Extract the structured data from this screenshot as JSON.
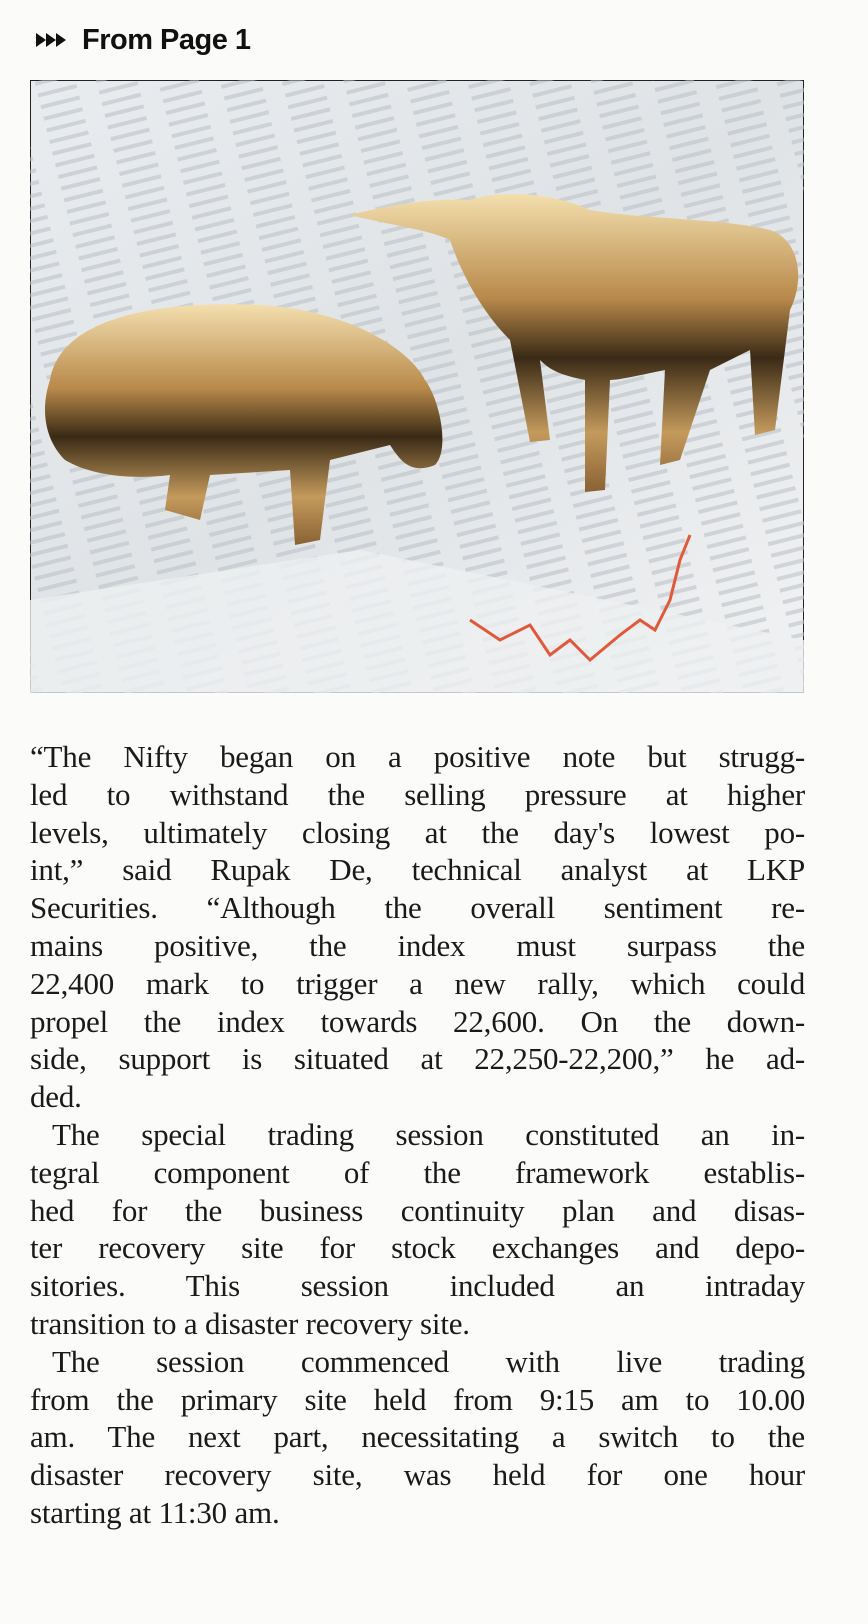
{
  "header": {
    "label": "From Page 1"
  },
  "article": {
    "paragraphs": [
      [
        "“The Nifty began on a positive note but strugg-",
        "led to withstand the selling pressure at higher",
        "levels, ultimately closing at the day's lowest po-",
        "int,” said Rupak De, technical analyst at LKP",
        "Securities. “Although the overall sentiment re-",
        "mains positive, the index must surpass the",
        "22,400 mark to trigger a new rally, which could",
        "propel the index towards 22,600. On the down-",
        "side, support is situated at 22,250-22,200,” he ad-",
        "ded."
      ],
      [
        "The special trading session constituted an in-",
        "tegral component of the framework establis-",
        "hed for the business continuity plan and disas-",
        "ter recovery site for stock exchanges and depo-",
        "sitories. This session included an intraday",
        "transition to a disaster recovery site."
      ],
      [
        "The session commenced with live trading",
        "from the primary site held from 9:15 am to 10.00",
        "am. The next part, necessitating a switch to the",
        "disaster recovery site, was held for one hour",
        "starting at 11:30 am."
      ]
    ]
  }
}
